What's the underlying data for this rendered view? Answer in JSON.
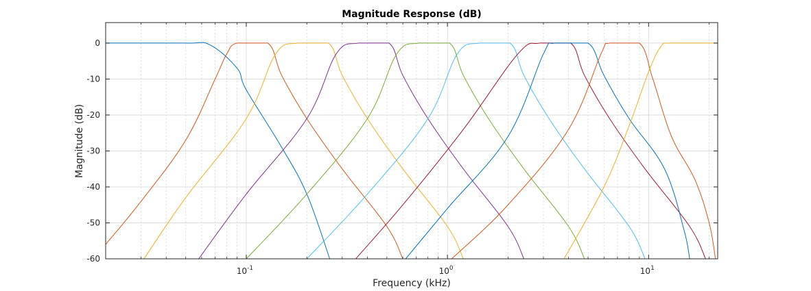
{
  "chart_data": {
    "type": "line",
    "title": "Magnitude Response (dB)",
    "xlabel": "Frequency (kHz)",
    "ylabel": "Magnitude (dB)",
    "x_scale": "log",
    "xlim": [
      0.02,
      22.05
    ],
    "ylim": [
      -60,
      5.7
    ],
    "yticks": [
      0,
      -10,
      -20,
      -30,
      -40,
      -50,
      -60
    ],
    "xticks": [
      {
        "value": 0.1,
        "base": "10",
        "exp": "-1"
      },
      {
        "value": 1,
        "base": "10",
        "exp": "0"
      },
      {
        "value": 10,
        "base": "10",
        "exp": "1"
      }
    ],
    "grid": true,
    "minor_grid_x": true,
    "legend": "none",
    "series": [
      {
        "color": "#0072BD",
        "kind": "lowpass",
        "upper_edge_khz": 0.066,
        "points": [
          [
            0.02,
            0
          ],
          [
            0.05,
            0
          ],
          [
            0.066,
            -0.5
          ],
          [
            0.09,
            -7
          ],
          [
            0.1,
            -13
          ],
          [
            0.15,
            -29
          ],
          [
            0.2,
            -42
          ],
          [
            0.26,
            -60
          ]
        ]
      },
      {
        "color": "#D95319",
        "kind": "bandpass",
        "lower_edge_khz": 0.09,
        "upper_edge_khz": 0.128,
        "points": [
          [
            0.02,
            -56
          ],
          [
            0.03,
            -44
          ],
          [
            0.05,
            -27
          ],
          [
            0.07,
            -10
          ],
          [
            0.08,
            -3
          ],
          [
            0.09,
            0
          ],
          [
            0.128,
            0
          ],
          [
            0.15,
            -9
          ],
          [
            0.2,
            -21
          ],
          [
            0.3,
            -35
          ],
          [
            0.5,
            -51
          ],
          [
            0.6,
            -60
          ]
        ]
      },
      {
        "color": "#EDB120",
        "kind": "bandpass",
        "lower_edge_khz": 0.18,
        "upper_edge_khz": 0.256,
        "points": [
          [
            0.031,
            -60
          ],
          [
            0.05,
            -43
          ],
          [
            0.1,
            -21
          ],
          [
            0.14,
            -3
          ],
          [
            0.18,
            0
          ],
          [
            0.256,
            0
          ],
          [
            0.3,
            -9
          ],
          [
            0.4,
            -21
          ],
          [
            0.6,
            -35
          ],
          [
            1.0,
            -51
          ],
          [
            1.2,
            -60
          ]
        ]
      },
      {
        "color": "#7E2F8E",
        "kind": "bandpass",
        "lower_edge_khz": 0.36,
        "upper_edge_khz": 0.512,
        "points": [
          [
            0.058,
            -60
          ],
          [
            0.1,
            -42
          ],
          [
            0.2,
            -21
          ],
          [
            0.28,
            -3
          ],
          [
            0.36,
            0
          ],
          [
            0.512,
            0
          ],
          [
            0.6,
            -9
          ],
          [
            0.8,
            -21
          ],
          [
            1.2,
            -35
          ],
          [
            2.0,
            -51
          ],
          [
            2.4,
            -60
          ]
        ]
      },
      {
        "color": "#77AC30",
        "kind": "bandpass",
        "lower_edge_khz": 0.72,
        "upper_edge_khz": 1.024,
        "points": [
          [
            0.1,
            -60
          ],
          [
            0.2,
            -42
          ],
          [
            0.4,
            -21
          ],
          [
            0.56,
            -3
          ],
          [
            0.72,
            0
          ],
          [
            1.024,
            0
          ],
          [
            1.2,
            -9
          ],
          [
            1.6,
            -21
          ],
          [
            2.4,
            -35
          ],
          [
            4.0,
            -51
          ],
          [
            4.8,
            -60
          ]
        ]
      },
      {
        "color": "#4DBEEE",
        "kind": "bandpass",
        "lower_edge_khz": 1.44,
        "upper_edge_khz": 2.048,
        "points": [
          [
            0.2,
            -60
          ],
          [
            0.4,
            -42
          ],
          [
            0.8,
            -21
          ],
          [
            1.12,
            -3
          ],
          [
            1.44,
            0
          ],
          [
            2.048,
            0
          ],
          [
            2.4,
            -9
          ],
          [
            3.2,
            -21
          ],
          [
            4.8,
            -35
          ],
          [
            8.0,
            -51
          ],
          [
            9.6,
            -60
          ]
        ]
      },
      {
        "color": "#A2142F",
        "kind": "bandpass",
        "lower_edge_khz": 2.88,
        "upper_edge_khz": 4.096,
        "points": [
          [
            0.35,
            -60
          ],
          [
            0.6,
            -45
          ],
          [
            1.2,
            -24
          ],
          [
            2.24,
            -3
          ],
          [
            2.88,
            0
          ],
          [
            4.096,
            0
          ],
          [
            4.8,
            -9
          ],
          [
            6.4,
            -21
          ],
          [
            9.6,
            -35
          ],
          [
            16,
            -51
          ],
          [
            19.2,
            -60
          ]
        ]
      },
      {
        "color": "#0072BD",
        "kind": "bandpass",
        "lower_edge_khz": 3.0,
        "upper_edge_khz": 5.0,
        "points": [
          [
            0.62,
            -60
          ],
          [
            1.0,
            -46
          ],
          [
            2.0,
            -26
          ],
          [
            3.0,
            -3
          ],
          [
            3.4,
            0
          ],
          [
            5.0,
            0
          ],
          [
            6.0,
            -9
          ],
          [
            8.0,
            -21
          ],
          [
            12,
            -35
          ],
          [
            15,
            -52
          ],
          [
            16,
            -60
          ]
        ]
      },
      {
        "color": "#D95319",
        "kind": "bandpass",
        "lower_edge_khz": 5.8,
        "upper_edge_khz": 9.0,
        "points": [
          [
            1.05,
            -60
          ],
          [
            2.0,
            -45
          ],
          [
            4.0,
            -24
          ],
          [
            5.8,
            -3
          ],
          [
            6.4,
            0
          ],
          [
            9.0,
            0
          ],
          [
            10.5,
            -10
          ],
          [
            13,
            -26
          ],
          [
            17,
            -38
          ],
          [
            20,
            -50
          ],
          [
            21.5,
            -60
          ]
        ]
      },
      {
        "color": "#EDB120",
        "kind": "highpass",
        "lower_edge_khz": 11.5,
        "points": [
          [
            3.8,
            -60
          ],
          [
            6.0,
            -40
          ],
          [
            8.0,
            -23
          ],
          [
            10.0,
            -8
          ],
          [
            11.5,
            -1
          ],
          [
            13,
            0
          ],
          [
            22.05,
            0
          ]
        ]
      }
    ]
  }
}
